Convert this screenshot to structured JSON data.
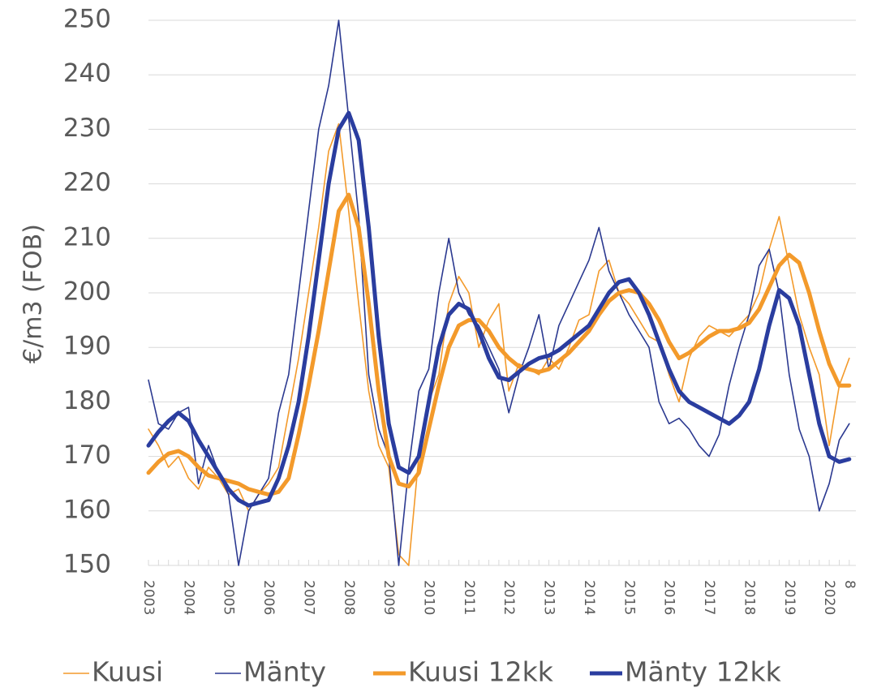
{
  "chart_data": {
    "type": "line",
    "y_label": "€/m3 (FOB)",
    "categories": [
      "2003",
      null,
      null,
      null,
      "2004",
      null,
      null,
      null,
      "2005",
      null,
      null,
      null,
      "2006",
      null,
      null,
      null,
      "2007",
      null,
      null,
      null,
      "2008",
      null,
      null,
      null,
      "2009",
      null,
      null,
      null,
      "2010",
      null,
      null,
      null,
      "2011",
      null,
      null,
      null,
      "2012",
      null,
      null,
      null,
      "2013",
      null,
      null,
      null,
      "2014",
      null,
      null,
      null,
      "2015",
      null,
      null,
      null,
      "2016",
      null,
      null,
      null,
      "2017",
      null,
      null,
      null,
      "2018",
      null,
      null,
      null,
      "2019",
      null,
      null,
      null,
      "2020",
      null,
      "8"
    ],
    "ylim": [
      150,
      250
    ],
    "yticks": [
      150,
      160,
      170,
      180,
      190,
      200,
      210,
      220,
      230,
      240,
      250
    ],
    "grid": true,
    "legend": "bottom",
    "series": [
      {
        "name": "Kuusi",
        "color": "#f39a2b",
        "line_width": 1.6,
        "values": [
          175,
          172,
          168,
          170,
          166,
          164,
          168,
          166,
          163,
          164,
          160,
          163,
          165,
          168,
          178,
          188,
          200,
          212,
          226,
          231,
          215,
          198,
          182,
          172,
          168,
          152,
          150,
          170,
          180,
          185,
          198,
          203,
          200,
          190,
          195,
          198,
          182,
          187,
          186,
          185,
          188,
          186,
          190,
          195,
          196,
          204,
          206,
          200,
          198,
          195,
          192,
          191,
          185,
          180,
          188,
          192,
          194,
          193,
          192,
          194,
          196,
          200,
          208,
          214,
          205,
          196,
          190,
          185,
          172,
          183,
          188
        ]
      },
      {
        "name": "Mänty",
        "color": "#2b3990",
        "line_width": 1.6,
        "values": [
          184,
          176,
          175,
          178,
          179,
          165,
          172,
          167,
          163,
          150,
          160,
          163,
          166,
          178,
          185,
          200,
          215,
          230,
          238,
          250,
          232,
          214,
          185,
          175,
          170,
          150,
          168,
          182,
          186,
          200,
          210,
          200,
          196,
          194,
          190,
          186,
          178,
          185,
          190,
          196,
          186,
          194,
          198,
          202,
          206,
          212,
          204,
          200,
          196,
          193,
          190,
          180,
          176,
          177,
          175,
          172,
          170,
          174,
          183,
          190,
          196,
          205,
          208,
          200,
          185,
          175,
          170,
          160,
          165,
          173,
          176
        ]
      },
      {
        "name": "Kuusi 12kk",
        "color": "#f39a2b",
        "line_width": 5,
        "values": [
          167,
          169,
          170.5,
          171,
          170,
          168,
          166.5,
          166,
          165.5,
          165,
          164,
          163.5,
          163,
          163.5,
          166,
          174,
          183,
          193,
          204,
          215,
          218,
          212,
          198,
          182,
          170,
          165,
          164.5,
          167,
          175,
          183,
          190,
          194,
          195,
          195,
          193,
          190,
          188,
          186.5,
          186,
          185.5,
          186,
          187.5,
          189,
          191,
          193,
          196,
          198.5,
          200,
          200.5,
          200,
          198,
          195,
          191,
          188,
          189,
          190.5,
          192,
          193,
          193,
          193.5,
          194.5,
          197,
          201,
          205,
          207,
          205.5,
          200,
          193,
          187,
          183,
          183
        ]
      },
      {
        "name": "Mänty 12kk",
        "color": "#2a3d9f",
        "line_width": 5,
        "values": [
          172,
          174.5,
          176.5,
          178,
          176.5,
          173,
          170,
          167,
          164,
          162,
          161,
          161.5,
          162,
          166,
          172,
          180,
          192,
          206,
          220,
          230,
          233,
          228,
          212,
          192,
          176,
          168,
          167,
          170,
          180,
          190,
          196,
          198,
          197,
          193,
          188,
          184.5,
          184,
          185.5,
          187,
          188,
          188.5,
          189.5,
          191,
          192.5,
          194,
          197,
          200,
          202,
          202.5,
          200,
          196,
          191,
          186,
          182,
          180,
          179,
          178,
          177,
          176,
          177.5,
          180,
          186,
          194,
          200.5,
          199,
          194,
          185,
          176,
          170,
          169,
          169.5
        ]
      }
    ]
  }
}
